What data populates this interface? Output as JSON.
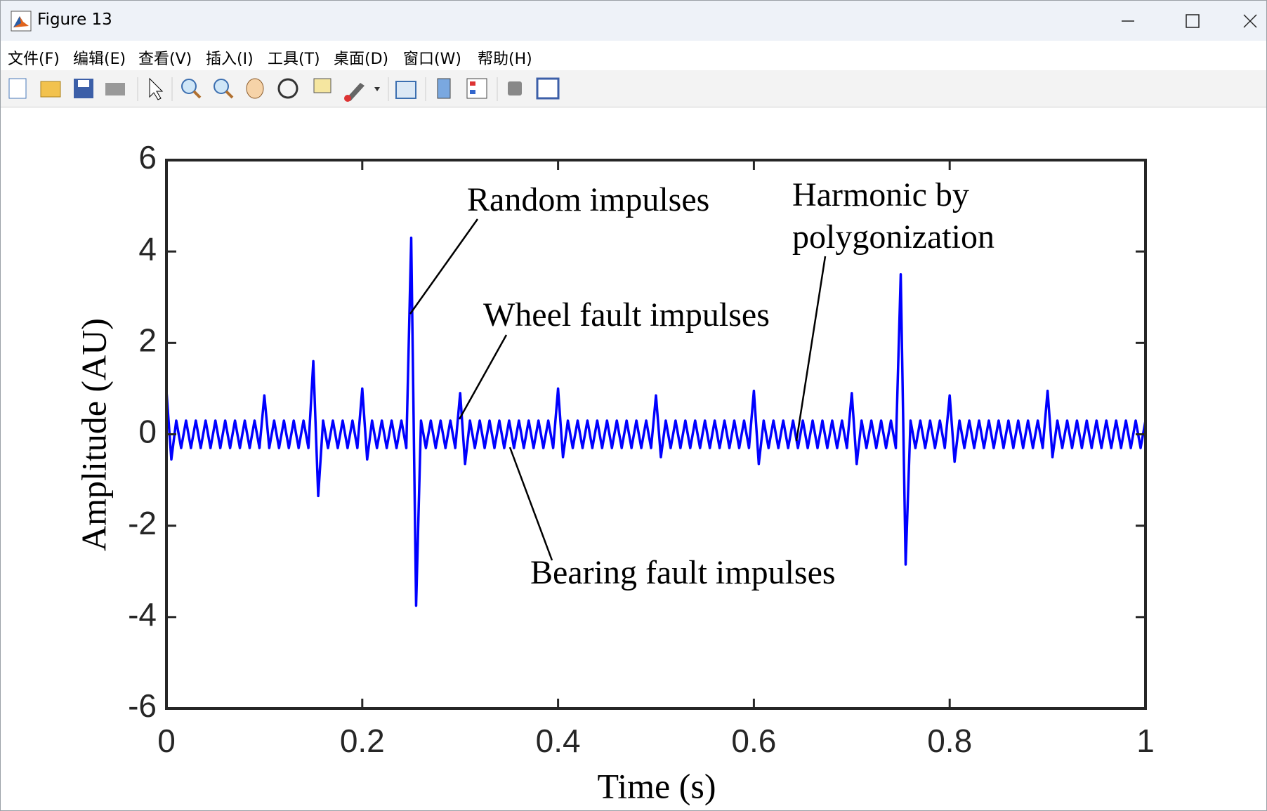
{
  "window_title": "Figure 13",
  "menu": [
    "文件(F)",
    "编辑(E)",
    "查看(V)",
    "插入(I)",
    "工具(T)",
    "桌面(D)",
    "窗口(W)",
    "帮助(H)"
  ],
  "chart_data": {
    "type": "line",
    "xlabel": "Time (s)",
    "ylabel": "Amplitude (AU)",
    "color": "#0000ff",
    "xlim": [
      0,
      1
    ],
    "ylim": [
      -6,
      6
    ],
    "xticks": [
      0,
      0.2,
      0.4,
      0.6,
      0.8,
      1
    ],
    "yticks": [
      -6,
      -4,
      -2,
      0,
      2,
      4,
      6
    ],
    "annotations": [
      "Random impulses",
      "Wheel fault impulses",
      "Harmonic by",
      "polygonization",
      "Bearing fault impulses"
    ],
    "x": [
      0,
      0.005,
      0.01,
      0.015,
      0.02,
      0.025,
      0.03,
      0.035,
      0.04,
      0.045,
      0.05,
      0.055,
      0.06,
      0.065,
      0.07,
      0.075,
      0.08,
      0.085,
      0.09,
      0.095,
      0.1,
      0.105,
      0.11,
      0.115,
      0.12,
      0.125,
      0.13,
      0.135,
      0.14,
      0.145,
      0.15,
      0.155,
      0.16,
      0.165,
      0.17,
      0.175,
      0.18,
      0.185,
      0.19,
      0.195,
      0.2,
      0.205,
      0.21,
      0.215,
      0.22,
      0.225,
      0.23,
      0.235,
      0.24,
      0.245,
      0.25,
      0.255,
      0.26,
      0.265,
      0.27,
      0.275,
      0.28,
      0.285,
      0.29,
      0.295,
      0.3,
      0.305,
      0.31,
      0.315,
      0.32,
      0.325,
      0.33,
      0.335,
      0.34,
      0.345,
      0.35,
      0.355,
      0.36,
      0.365,
      0.37,
      0.375,
      0.38,
      0.385,
      0.39,
      0.395,
      0.4,
      0.405,
      0.41,
      0.415,
      0.42,
      0.425,
      0.43,
      0.435,
      0.44,
      0.445,
      0.45,
      0.455,
      0.46,
      0.465,
      0.47,
      0.475,
      0.48,
      0.485,
      0.49,
      0.495,
      0.5,
      0.505,
      0.51,
      0.515,
      0.52,
      0.525,
      0.53,
      0.535,
      0.54,
      0.545,
      0.55,
      0.555,
      0.56,
      0.565,
      0.57,
      0.575,
      0.58,
      0.585,
      0.59,
      0.595,
      0.6,
      0.605,
      0.61,
      0.615,
      0.62,
      0.625,
      0.63,
      0.635,
      0.64,
      0.645,
      0.65,
      0.655,
      0.66,
      0.665,
      0.67,
      0.675,
      0.68,
      0.685,
      0.69,
      0.695,
      0.7,
      0.705,
      0.71,
      0.715,
      0.72,
      0.725,
      0.73,
      0.735,
      0.74,
      0.745,
      0.75,
      0.755,
      0.76,
      0.765,
      0.77,
      0.775,
      0.78,
      0.785,
      0.79,
      0.795,
      0.8,
      0.805,
      0.81,
      0.815,
      0.82,
      0.825,
      0.83,
      0.835,
      0.84,
      0.845,
      0.85,
      0.855,
      0.86,
      0.865,
      0.87,
      0.875,
      0.88,
      0.885,
      0.89,
      0.895,
      0.9,
      0.905,
      0.91,
      0.915,
      0.92,
      0.925,
      0.93,
      0.935,
      0.94,
      0.945,
      0.95,
      0.955,
      0.96,
      0.965,
      0.97,
      0.975,
      0.98,
      0.985,
      0.99,
      0.995,
      1
    ],
    "values": [
      0.95,
      -0.55,
      0.3,
      -0.3,
      0.3,
      -0.3,
      0.3,
      -0.3,
      0.3,
      -0.3,
      0.3,
      -0.3,
      0.3,
      -0.3,
      0.3,
      -0.3,
      0.3,
      -0.3,
      0.3,
      -0.3,
      0.85,
      -0.3,
      0.3,
      -0.3,
      0.3,
      -0.3,
      0.3,
      -0.3,
      0.3,
      -0.3,
      1.6,
      -1.35,
      0.3,
      -0.3,
      0.3,
      -0.3,
      0.3,
      -0.3,
      0.3,
      -0.3,
      1.0,
      -0.55,
      0.3,
      -0.3,
      0.3,
      -0.3,
      0.3,
      -0.3,
      0.3,
      -0.3,
      4.3,
      -3.75,
      0.3,
      -0.3,
      0.3,
      -0.3,
      0.3,
      -0.3,
      0.3,
      -0.3,
      0.9,
      -0.65,
      0.3,
      -0.3,
      0.3,
      -0.3,
      0.3,
      -0.3,
      0.3,
      -0.3,
      0.3,
      -0.3,
      0.3,
      -0.3,
      0.3,
      -0.3,
      0.3,
      -0.3,
      0.3,
      -0.3,
      1.0,
      -0.5,
      0.3,
      -0.3,
      0.3,
      -0.3,
      0.3,
      -0.3,
      0.3,
      -0.3,
      0.3,
      -0.3,
      0.3,
      -0.3,
      0.3,
      -0.3,
      0.3,
      -0.3,
      0.3,
      -0.3,
      0.85,
      -0.5,
      0.3,
      -0.3,
      0.3,
      -0.3,
      0.3,
      -0.3,
      0.3,
      -0.3,
      0.3,
      -0.3,
      0.3,
      -0.3,
      0.3,
      -0.3,
      0.3,
      -0.3,
      0.3,
      -0.3,
      0.95,
      -0.65,
      0.3,
      -0.3,
      0.3,
      -0.3,
      0.3,
      -0.3,
      0.3,
      -0.3,
      0.3,
      -0.3,
      0.3,
      -0.3,
      0.3,
      -0.3,
      0.3,
      -0.3,
      0.3,
      -0.3,
      0.9,
      -0.65,
      0.3,
      -0.3,
      0.3,
      -0.3,
      0.3,
      -0.3,
      0.3,
      -0.3,
      3.5,
      -2.85,
      0.3,
      -0.3,
      0.3,
      -0.3,
      0.3,
      -0.3,
      0.3,
      -0.3,
      0.85,
      -0.6,
      0.3,
      -0.3,
      0.3,
      -0.3,
      0.3,
      -0.3,
      0.3,
      -0.3,
      0.3,
      -0.3,
      0.3,
      -0.3,
      0.3,
      -0.3,
      0.3,
      -0.3,
      0.3,
      -0.3,
      0.95,
      -0.5,
      0.3,
      -0.3,
      0.3,
      -0.3,
      0.3,
      -0.3,
      0.3,
      -0.3,
      0.3,
      -0.3,
      0.3,
      -0.3,
      0.3,
      -0.3,
      0.3,
      -0.3,
      0.3,
      -0.3,
      0.3
    ]
  }
}
